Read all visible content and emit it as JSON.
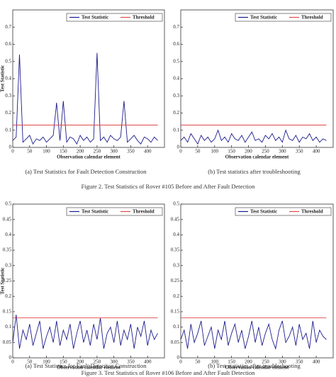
{
  "chart_data": [
    {
      "type": "line",
      "caption": "(a) Test Statistics for Fault Detection Construction",
      "x_label": "Observation calendar element",
      "y_label": "Test Statistic",
      "xlim": [
        0,
        450
      ],
      "xticks": [
        0,
        50,
        100,
        150,
        200,
        250,
        300,
        350,
        400
      ],
      "ylim": [
        0,
        0.8
      ],
      "yticks": [
        0,
        0.1,
        0.2,
        0.3,
        0.4,
        0.5,
        0.6,
        0.7
      ],
      "x": [
        0,
        10,
        20,
        30,
        40,
        50,
        60,
        70,
        80,
        90,
        100,
        110,
        120,
        130,
        140,
        150,
        160,
        170,
        180,
        190,
        200,
        210,
        220,
        230,
        240,
        250,
        260,
        270,
        280,
        290,
        300,
        310,
        320,
        330,
        340,
        350,
        360,
        370,
        380,
        390,
        400,
        410,
        420,
        430
      ],
      "series": [
        {
          "name": "Test Statistic",
          "color": "#1c1c8c",
          "values": [
            0.04,
            0.06,
            0.54,
            0.03,
            0.05,
            0.07,
            0.02,
            0.05,
            0.04,
            0.06,
            0.03,
            0.05,
            0.07,
            0.26,
            0.04,
            0.27,
            0.03,
            0.06,
            0.05,
            0.02,
            0.07,
            0.04,
            0.06,
            0.03,
            0.05,
            0.55,
            0.04,
            0.06,
            0.03,
            0.07,
            0.05,
            0.04,
            0.06,
            0.27,
            0.03,
            0.05,
            0.07,
            0.04,
            0.02,
            0.06,
            0.05,
            0.03,
            0.06,
            0.04
          ]
        },
        {
          "name": "Threshold",
          "color": "#e04a4a",
          "x": [
            0,
            430
          ],
          "values": [
            0.13,
            0.13
          ]
        }
      ]
    },
    {
      "type": "line",
      "caption": "(b) Test statistics after troubleshooting",
      "x_label": "Observation calendar element",
      "xlim": [
        0,
        450
      ],
      "xticks": [
        0,
        50,
        100,
        150,
        200,
        250,
        300,
        350,
        400
      ],
      "ylim": [
        0,
        0.8
      ],
      "yticks": [
        0,
        0.1,
        0.2,
        0.3,
        0.4,
        0.5,
        0.6,
        0.7
      ],
      "x": [
        0,
        10,
        20,
        30,
        40,
        50,
        60,
        70,
        80,
        90,
        100,
        110,
        120,
        130,
        140,
        150,
        160,
        170,
        180,
        190,
        200,
        210,
        220,
        230,
        240,
        250,
        260,
        270,
        280,
        290,
        300,
        310,
        320,
        330,
        340,
        350,
        360,
        370,
        380,
        390,
        400,
        410,
        420,
        430
      ],
      "series": [
        {
          "name": "Test Statistic",
          "color": "#1c1c8c",
          "values": [
            0.04,
            0.06,
            0.03,
            0.08,
            0.05,
            0.02,
            0.07,
            0.04,
            0.06,
            0.03,
            0.05,
            0.1,
            0.04,
            0.06,
            0.03,
            0.08,
            0.05,
            0.04,
            0.07,
            0.03,
            0.06,
            0.09,
            0.04,
            0.05,
            0.03,
            0.07,
            0.05,
            0.08,
            0.04,
            0.06,
            0.03,
            0.1,
            0.05,
            0.04,
            0.07,
            0.03,
            0.06,
            0.05,
            0.08,
            0.04,
            0.06,
            0.03,
            0.05,
            0.04
          ]
        },
        {
          "name": "Threshold",
          "color": "#e04a4a",
          "x": [
            0,
            430
          ],
          "values": [
            0.13,
            0.13
          ]
        }
      ]
    },
    {
      "type": "line",
      "caption": "(a) Test Statistics for Fault Detection Construction",
      "x_label": "Observation calendar element",
      "y_label": "Test Statistic",
      "xlim": [
        0,
        450
      ],
      "xticks": [
        0,
        50,
        100,
        150,
        200,
        250,
        300,
        350,
        400
      ],
      "ylim": [
        0,
        0.5
      ],
      "yticks": [
        0,
        0.05,
        0.1,
        0.15,
        0.2,
        0.25,
        0.3,
        0.35,
        0.4,
        0.45,
        0.5
      ],
      "x": [
        0,
        10,
        20,
        30,
        40,
        50,
        60,
        70,
        80,
        90,
        100,
        110,
        120,
        130,
        140,
        150,
        160,
        170,
        180,
        190,
        200,
        210,
        220,
        230,
        240,
        250,
        260,
        270,
        280,
        290,
        300,
        310,
        320,
        330,
        340,
        350,
        360,
        370,
        380,
        390,
        400,
        410,
        420,
        430
      ],
      "series": [
        {
          "name": "Test Statistic",
          "color": "#1c1c8c",
          "values": [
            0.05,
            0.14,
            0.03,
            0.09,
            0.06,
            0.11,
            0.04,
            0.08,
            0.12,
            0.03,
            0.07,
            0.1,
            0.05,
            0.12,
            0.04,
            0.09,
            0.06,
            0.11,
            0.03,
            0.08,
            0.12,
            0.05,
            0.09,
            0.04,
            0.11,
            0.06,
            0.13,
            0.03,
            0.08,
            0.1,
            0.05,
            0.12,
            0.04,
            0.09,
            0.06,
            0.11,
            0.03,
            0.1,
            0.07,
            0.12,
            0.04,
            0.09,
            0.06,
            0.08
          ]
        },
        {
          "name": "Threshold",
          "color": "#e04a4a",
          "x": [
            0,
            430
          ],
          "values": [
            0.13,
            0.13
          ]
        }
      ]
    },
    {
      "type": "line",
      "caption": "(b) Test statistics after troubleshooting",
      "x_label": "Observation calendar element",
      "xlim": [
        0,
        450
      ],
      "xticks": [
        0,
        50,
        100,
        150,
        200,
        250,
        300,
        350,
        400
      ],
      "ylim": [
        0,
        0.5
      ],
      "yticks": [
        0,
        0.05,
        0.1,
        0.15,
        0.2,
        0.25,
        0.3,
        0.35,
        0.4,
        0.45,
        0.5
      ],
      "x": [
        0,
        10,
        20,
        30,
        40,
        50,
        60,
        70,
        80,
        90,
        100,
        110,
        120,
        130,
        140,
        150,
        160,
        170,
        180,
        190,
        200,
        210,
        220,
        230,
        240,
        250,
        260,
        270,
        280,
        290,
        300,
        310,
        320,
        330,
        340,
        350,
        360,
        370,
        380,
        390,
        400,
        410,
        420,
        430
      ],
      "series": [
        {
          "name": "Test Statistic",
          "color": "#1c1c8c",
          "values": [
            0.06,
            0.09,
            0.03,
            0.11,
            0.05,
            0.08,
            0.12,
            0.04,
            0.07,
            0.1,
            0.03,
            0.09,
            0.06,
            0.12,
            0.04,
            0.08,
            0.11,
            0.05,
            0.09,
            0.03,
            0.07,
            0.12,
            0.05,
            0.1,
            0.04,
            0.08,
            0.11,
            0.06,
            0.03,
            0.09,
            0.12,
            0.05,
            0.07,
            0.1,
            0.04,
            0.11,
            0.06,
            0.08,
            0.03,
            0.12,
            0.05,
            0.09,
            0.07,
            0.06
          ]
        },
        {
          "name": "Threshold",
          "color": "#e04a4a",
          "x": [
            0,
            430
          ],
          "values": [
            0.13,
            0.13
          ]
        }
      ]
    }
  ],
  "figures": [
    {
      "caption": "Figure 2. Test Statistics of Rover #105 Before and After Fault Detection"
    },
    {
      "caption": "Figure 3. Test Statistics of Rover #106 Before and After Fault Detection"
    }
  ]
}
